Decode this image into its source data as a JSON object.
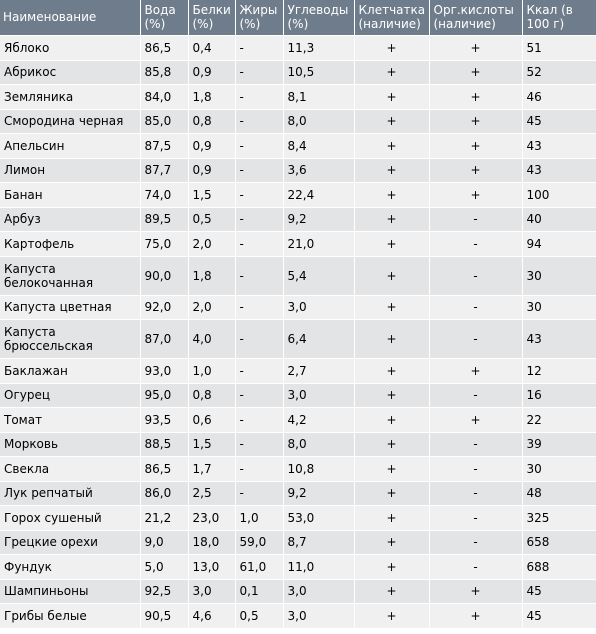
{
  "headers": [
    "Наименование",
    "Вода (%)",
    "Белки (%)",
    "Жиры (%)",
    "Углеводы (%)",
    "Клетчатка (наличие)",
    "Орг.кислоты (наличие)",
    "Ккал (в 100 г)"
  ],
  "rows": [
    {
      "name": "Яблоко",
      "water": "86,5",
      "protein": "0,4",
      "fat": "-",
      "carbs": "11,3",
      "fiber": "+",
      "acids": "+",
      "kcal": "51"
    },
    {
      "name": "Абрикос",
      "water": "85,8",
      "protein": "0,9",
      "fat": "-",
      "carbs": "10,5",
      "fiber": "+",
      "acids": "+",
      "kcal": "52"
    },
    {
      "name": "Земляника",
      "water": "84,0",
      "protein": "1,8",
      "fat": "-",
      "carbs": "8,1",
      "fiber": "+",
      "acids": "+",
      "kcal": "46"
    },
    {
      "name": "Смородина черная",
      "water": "85,0",
      "protein": "0,8",
      "fat": "-",
      "carbs": "8,0",
      "fiber": "+",
      "acids": "+",
      "kcal": "45"
    },
    {
      "name": "Апельсин",
      "water": "87,5",
      "protein": "0,9",
      "fat": "-",
      "carbs": "8,4",
      "fiber": "+",
      "acids": "+",
      "kcal": "43"
    },
    {
      "name": "Лимон",
      "water": "87,7",
      "protein": "0,9",
      "fat": "-",
      "carbs": "3,6",
      "fiber": "+",
      "acids": "+",
      "kcal": "43"
    },
    {
      "name": "Банан",
      "water": "74,0",
      "protein": "1,5",
      "fat": "-",
      "carbs": "22,4",
      "fiber": "+",
      "acids": "+",
      "kcal": "100"
    },
    {
      "name": "Арбуз",
      "water": "89,5",
      "protein": "0,5",
      "fat": "-",
      "carbs": "9,2",
      "fiber": "+",
      "acids": "-",
      "kcal": "40"
    },
    {
      "name": "Картофель",
      "water": "75,0",
      "protein": "2,0",
      "fat": "-",
      "carbs": "21,0",
      "fiber": "+",
      "acids": "-",
      "kcal": "94"
    },
    {
      "name": "Капуста белокочанная",
      "water": "90,0",
      "protein": "1,8",
      "fat": "-",
      "carbs": "5,4",
      "fiber": "+",
      "acids": "-",
      "kcal": "30",
      "tall": true
    },
    {
      "name": "Капуста цветная",
      "water": "92,0",
      "protein": "2,0",
      "fat": "-",
      "carbs": "3,0",
      "fiber": "+",
      "acids": "-",
      "kcal": "30"
    },
    {
      "name": "Капуста брюссельская",
      "water": "87,0",
      "protein": "4,0",
      "fat": "-",
      "carbs": "6,4",
      "fiber": "+",
      "acids": "-",
      "kcal": "43",
      "tall": true
    },
    {
      "name": "Баклажан",
      "water": "93,0",
      "protein": "1,0",
      "fat": "-",
      "carbs": "2,7",
      "fiber": "+",
      "acids": "+",
      "kcal": "12"
    },
    {
      "name": "Огурец",
      "water": "95,0",
      "protein": "0,8",
      "fat": "-",
      "carbs": "3,0",
      "fiber": "+",
      "acids": "-",
      "kcal": "16"
    },
    {
      "name": "Томат",
      "water": "93,5",
      "protein": "0,6",
      "fat": "-",
      "carbs": "4,2",
      "fiber": "+",
      "acids": "+",
      "kcal": "22"
    },
    {
      "name": "Морковь",
      "water": "88,5",
      "protein": "1,5",
      "fat": "-",
      "carbs": "8,0",
      "fiber": "+",
      "acids": "-",
      "kcal": "39"
    },
    {
      "name": "Свекла",
      "water": "86,5",
      "protein": "1,7",
      "fat": "-",
      "carbs": "10,8",
      "fiber": "+",
      "acids": "-",
      "kcal": "30"
    },
    {
      "name": "Лук репчатый",
      "water": "86,0",
      "protein": "2,5",
      "fat": "-",
      "carbs": "9,2",
      "fiber": "+",
      "acids": "-",
      "kcal": "48"
    },
    {
      "name": "Горох сушеный",
      "water": "21,2",
      "protein": "23,0",
      "fat": "1,0",
      "carbs": "53,0",
      "fiber": "+",
      "acids": "-",
      "kcal": "325"
    },
    {
      "name": "Грецкие орехи",
      "water": "9,0",
      "protein": "18,0",
      "fat": "59,0",
      "carbs": "8,7",
      "fiber": "+",
      "acids": "-",
      "kcal": "658"
    },
    {
      "name": "Фундук",
      "water": "5,0",
      "protein": "13,0",
      "fat": "61,0",
      "carbs": "11,0",
      "fiber": "+",
      "acids": "-",
      "kcal": "688"
    },
    {
      "name": "Шампиньоны",
      "water": "92,5",
      "protein": "3,0",
      "fat": "0,1",
      "carbs": "3,0",
      "fiber": "+",
      "acids": "+",
      "kcal": "45"
    },
    {
      "name": "Грибы белые",
      "water": "90,5",
      "protein": "4,6",
      "fat": "0,5",
      "carbs": "3,0",
      "fiber": "+",
      "acids": "+",
      "kcal": "45"
    }
  ]
}
